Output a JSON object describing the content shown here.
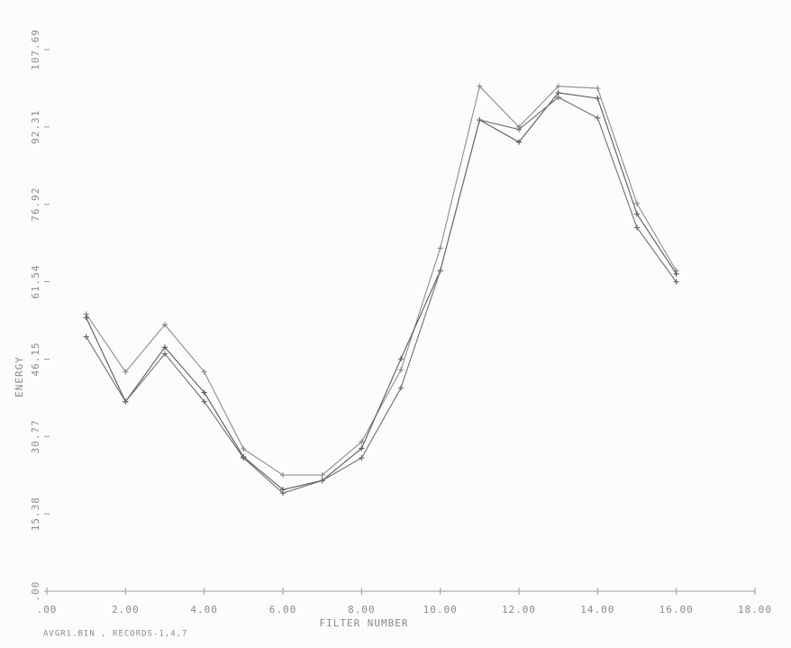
{
  "chart_data": {
    "type": "line",
    "x_label": "FILTER NUMBER",
    "y_label": "ENERGY",
    "footnote": "AVGR1.BIN , RECORDS-1,4,7",
    "x": [
      1,
      2,
      3,
      4,
      5,
      6,
      7,
      8,
      9,
      10,
      11,
      12,
      13,
      14,
      15,
      16
    ],
    "series": [
      {
        "color": "#8c8c8c",
        "values": [
          55.1,
          43.6,
          53,
          43.6,
          28.3,
          23.1,
          23.1,
          29.7,
          44,
          68.2,
          100.4,
          92.3,
          100.4,
          100,
          77.1,
          63.7
        ]
      },
      {
        "color": "#5a5a5a",
        "values": [
          54.4,
          37.7,
          48.5,
          39.5,
          26.7,
          20.2,
          22,
          28.4,
          46.2,
          63.7,
          93.7,
          89.3,
          99.1,
          98,
          75,
          63.1
        ]
      },
      {
        "color": "#6e6e6e",
        "values": [
          50.6,
          37.7,
          47.2,
          37.7,
          26.5,
          19.5,
          22,
          26.5,
          40.4,
          63.7,
          93.7,
          91.8,
          98.2,
          94.1,
          72.3,
          61.5
        ]
      }
    ],
    "xlim": [
      0,
      18
    ],
    "xticks": [
      {
        "value": 0,
        "label": ".00"
      },
      {
        "value": 2,
        "label": "2.00"
      },
      {
        "value": 4,
        "label": "4.00"
      },
      {
        "value": 6,
        "label": "6.00"
      },
      {
        "value": 8,
        "label": "8.00"
      },
      {
        "value": 10,
        "label": "10.00"
      },
      {
        "value": 12,
        "label": "12.00"
      },
      {
        "value": 14,
        "label": "14.00"
      },
      {
        "value": 16,
        "label": "16.00"
      },
      {
        "value": 18,
        "label": "18.00"
      }
    ],
    "ylim": [
      0,
      107.69
    ],
    "yticks": [
      {
        "value": 0,
        "label": ".00"
      },
      15.38,
      30.77,
      46.15,
      61.54,
      76.92,
      92.31,
      107.69
    ],
    "grid": false
  }
}
